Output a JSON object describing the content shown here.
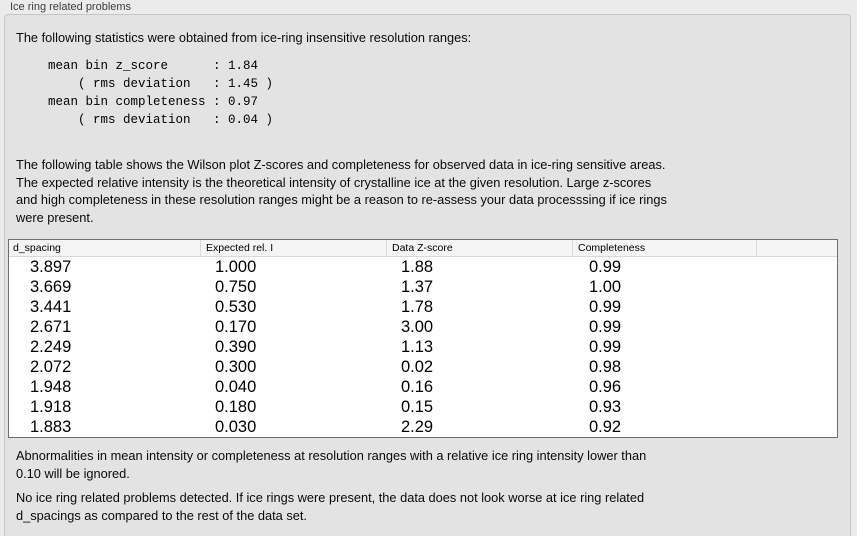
{
  "panel": {
    "title": "Ice ring related problems",
    "intro": "The following statistics were obtained from ice-ring insensitive resolution ranges:",
    "stats_lines": [
      "mean bin z_score      : 1.84",
      "    ( rms deviation   : 1.45 )",
      "mean bin completeness : 0.97",
      "    ( rms deviation   : 0.04 )"
    ],
    "stats": {
      "mean_bin_z_score": "1.84",
      "z_score_rms_deviation": "1.45",
      "mean_bin_completeness": "0.97",
      "completeness_rms_deviation": "0.04"
    },
    "table_description_lines": [
      "The following table shows the Wilson plot Z-scores and completeness for observed data in ice-ring sensitive areas.",
      "The expected relative intensity is the theoretical intensity of crystalline ice at the given resolution. Large z-scores",
      "and high completeness in these resolution ranges might be a reason to re-assess your data processsing if ice rings",
      "were present."
    ],
    "table": {
      "columns": [
        "d_spacing",
        "Expected rel. I",
        "Data Z-score",
        "Completeness"
      ],
      "rows": [
        [
          "3.897",
          "1.000",
          "1.88",
          "0.99"
        ],
        [
          "3.669",
          "0.750",
          "1.37",
          "1.00"
        ],
        [
          "3.441",
          "0.530",
          "1.78",
          "0.99"
        ],
        [
          "2.671",
          "0.170",
          "3.00",
          "0.99"
        ],
        [
          "2.249",
          "0.390",
          "1.13",
          "0.99"
        ],
        [
          "2.072",
          "0.300",
          "0.02",
          "0.98"
        ],
        [
          "1.948",
          "0.040",
          "0.16",
          "0.96"
        ],
        [
          "1.918",
          "0.180",
          "0.15",
          "0.93"
        ],
        [
          "1.883",
          "0.030",
          "2.29",
          "0.92"
        ]
      ]
    },
    "ignore_note_lines": [
      "Abnormalities in mean intensity or completeness at resolution ranges with a relative ice ring intensity lower than",
      "0.10 will be ignored."
    ],
    "conclusion_lines": [
      "No ice ring related problems detected. If ice rings were present, the data does not look worse at ice ring related",
      "d_spacings as compared to the rest of the data set."
    ]
  }
}
